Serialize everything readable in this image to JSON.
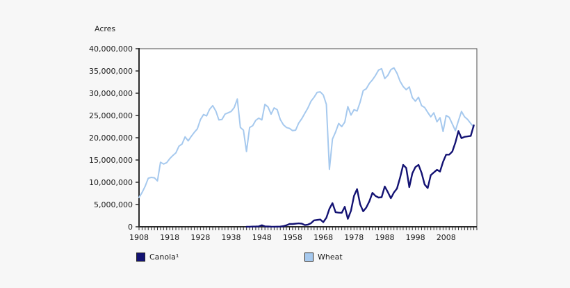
{
  "y_axis_title": "Acres",
  "legend": [
    {
      "label": "Canola¹",
      "color": "#131273"
    },
    {
      "label": "Wheat",
      "color": "#a6c9ee"
    }
  ],
  "axes": {
    "y": {
      "ticks": [
        {
          "value": 40,
          "label": "40,000,000"
        },
        {
          "value": 35,
          "label": "35,000,000"
        },
        {
          "value": 30,
          "label": "30,000,000"
        },
        {
          "value": 25,
          "label": "25,000,000"
        },
        {
          "value": 20,
          "label": "20,000,000"
        },
        {
          "value": 15,
          "label": "15,000,000"
        },
        {
          "value": 10,
          "label": "10,000,000"
        },
        {
          "value": 5,
          "label": "5,000,000"
        },
        {
          "value": 0,
          "label": "0"
        }
      ]
    },
    "x": {
      "ticks": [
        {
          "year": 1908,
          "label": "1908"
        },
        {
          "year": 1918,
          "label": "1918"
        },
        {
          "year": 1928,
          "label": "1928"
        },
        {
          "year": 1938,
          "label": "1938"
        },
        {
          "year": 1948,
          "label": "1948"
        },
        {
          "year": 1958,
          "label": "1958"
        },
        {
          "year": 1968,
          "label": "1968"
        },
        {
          "year": 1978,
          "label": "1978"
        },
        {
          "year": 1988,
          "label": "1988"
        },
        {
          "year": 1998,
          "label": "1998"
        },
        {
          "year": 2008,
          "label": "2008"
        }
      ]
    }
  },
  "chart_data": {
    "type": "line",
    "title": "",
    "xlabel": "",
    "ylabel": "Acres",
    "ylim_acres": [
      0,
      40000000
    ],
    "x_range_years": [
      1908,
      2018
    ],
    "minor_x_tick_every_years": 1,
    "values_unit": "million acres",
    "legend_position": "bottom",
    "grid": false,
    "series": [
      {
        "name": "Wheat",
        "color": "#a6c9ee",
        "start_year": 1908,
        "values": [
          6.6,
          7.7,
          9.1,
          10.9,
          11.1,
          11.0,
          10.3,
          14.5,
          14.1,
          14.4,
          15.3,
          16.0,
          16.6,
          18.1,
          18.6,
          20.2,
          19.3,
          20.3,
          21.2,
          22.0,
          24.1,
          25.2,
          24.9,
          26.4,
          27.2,
          26.0,
          24.0,
          24.1,
          25.3,
          25.6,
          25.9,
          26.8,
          28.7,
          22.3,
          21.7,
          16.9,
          22.3,
          22.7,
          23.9,
          24.4,
          24.0,
          27.5,
          26.9,
          25.3,
          26.7,
          26.3,
          24.1,
          22.9,
          22.3,
          22.1,
          21.6,
          21.7,
          23.3,
          24.3,
          25.5,
          26.7,
          28.2,
          29.1,
          30.2,
          30.3,
          29.6,
          27.5,
          12.9,
          19.7,
          21.3,
          23.2,
          22.5,
          23.5,
          27.0,
          25.1,
          26.3,
          26.0,
          28.0,
          30.6,
          31.0,
          32.2,
          33.0,
          34.0,
          35.2,
          35.5,
          33.3,
          34.0,
          35.3,
          35.7,
          34.5,
          32.7,
          31.5,
          30.8,
          31.4,
          29.0,
          28.2,
          29.1,
          27.2,
          26.8,
          25.7,
          24.7,
          25.6,
          23.6,
          24.5,
          21.4,
          25.0,
          24.6,
          23.1,
          21.6,
          23.8,
          25.9,
          24.7,
          24.1,
          23.2,
          22.4
        ]
      },
      {
        "name": "Canola",
        "color": "#131273",
        "start_year": 1943,
        "values": [
          0.01,
          0.02,
          0.04,
          0.06,
          0.1,
          0.35,
          0.1,
          0.06,
          0.03,
          0.02,
          0.03,
          0.04,
          0.14,
          0.35,
          0.62,
          0.63,
          0.71,
          0.76,
          0.71,
          0.37,
          0.48,
          0.79,
          1.44,
          1.53,
          1.62,
          1.05,
          2.01,
          4.04,
          5.31,
          3.27,
          3.17,
          3.14,
          4.48,
          1.78,
          3.6,
          6.96,
          8.47,
          5.05,
          3.47,
          4.32,
          5.73,
          7.62,
          6.92,
          6.57,
          6.64,
          9.04,
          7.8,
          6.4,
          7.7,
          8.6,
          11.0,
          13.9,
          13.2,
          8.9,
          12.0,
          13.4,
          13.9,
          12.1,
          9.5,
          8.7,
          11.6,
          12.2,
          12.8,
          12.4,
          14.6,
          16.2,
          16.2,
          16.9,
          18.9,
          21.5,
          19.9,
          20.2,
          20.3,
          20.4,
          22.8
        ]
      }
    ]
  }
}
